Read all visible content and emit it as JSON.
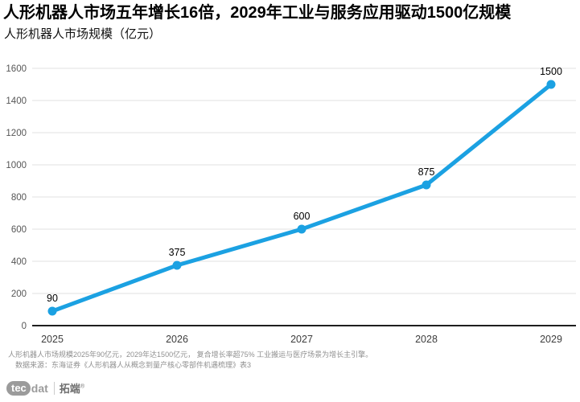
{
  "header": {
    "title": "人形机器人市场五年增长16倍，2029年工业与服务应用驱动1500亿规模",
    "subtitle": "人形机器人市场规模（亿元）"
  },
  "chart_data": {
    "type": "line",
    "title": "人形机器人市场规模（亿元）",
    "categories": [
      "2025",
      "2026",
      "2027",
      "2028",
      "2029"
    ],
    "values": [
      90,
      375,
      600,
      875,
      1500
    ],
    "data_labels": [
      "90",
      "375",
      "600",
      "875",
      "1500"
    ],
    "xlabel": "",
    "ylabel": "",
    "ylim": [
      0,
      1600
    ],
    "ytick_step": 200,
    "ytick_labels": [
      "0",
      "200",
      "400",
      "600",
      "800",
      "1000",
      "1200",
      "1400",
      "1600"
    ],
    "grid": true,
    "legend": "none",
    "line_color": "#1BA1E2",
    "marker_color": "#1BA1E2",
    "grid_color": "#e2e2e2",
    "axis_line_color": "#1f1f1f",
    "tick_text_color": "#565656",
    "label_text_color": "#000000"
  },
  "footnotes": {
    "line1": "人形机器人市场规模2025年90亿元，2029年达1500亿元， 复合增长率超75% 工业搬运与医疗场景为增长主引擎。",
    "line2": "数据来源：东海证券《人形机器人从概念到量产核心零部件机遇梳理》表3"
  },
  "logo": {
    "tec": "tec",
    "dat": "dat",
    "cn": "拓端",
    "reg": "®"
  }
}
